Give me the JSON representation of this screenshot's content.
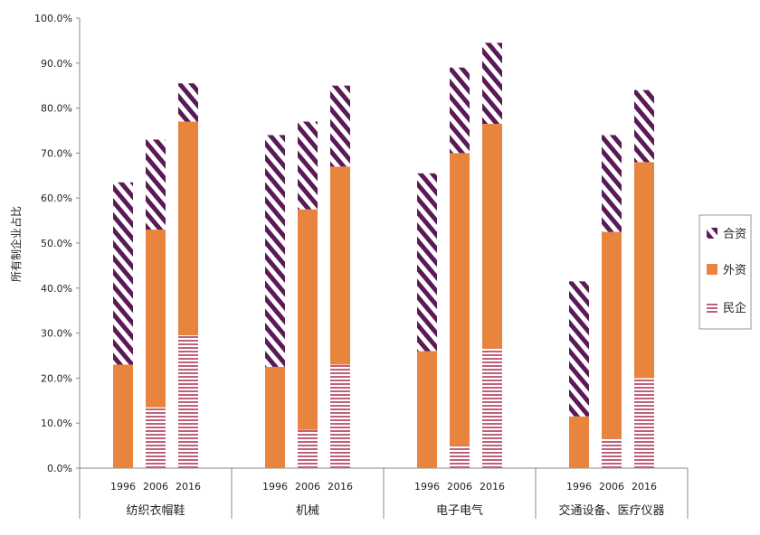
{
  "chart_data": {
    "type": "bar",
    "stacked": true,
    "title": "",
    "ylabel": "所有制企业占比",
    "xlabel": "",
    "ylim": [
      0,
      100
    ],
    "yticks": [
      "0.0%",
      "10.0%",
      "20.0%",
      "30.0%",
      "40.0%",
      "50.0%",
      "60.0%",
      "70.0%",
      "80.0%",
      "90.0%",
      "100.0%"
    ],
    "groups": [
      {
        "name": "纺织衣帽鞋",
        "years": [
          "1996",
          "2006",
          "2016"
        ]
      },
      {
        "name": "机械",
        "years": [
          "1996",
          "2006",
          "2016"
        ]
      },
      {
        "name": "电子电气",
        "years": [
          "1996",
          "2006",
          "2016"
        ]
      },
      {
        "name": "交通设备、医疗仪器",
        "years": [
          "1996",
          "2006",
          "2016"
        ]
      }
    ],
    "series": [
      {
        "name": "民企",
        "pattern": "horizontal-stripes",
        "color": "#c0607a",
        "values": [
          [
            0,
            13.5,
            29.5
          ],
          [
            0,
            8.5,
            23.0
          ],
          [
            0,
            5.0,
            26.5
          ],
          [
            0,
            6.5,
            20.0
          ]
        ]
      },
      {
        "name": "外资",
        "pattern": "solid",
        "color": "#e8843e",
        "values": [
          [
            23.0,
            39.5,
            47.5
          ],
          [
            22.5,
            49.0,
            44.0
          ],
          [
            26.0,
            65.0,
            50.0
          ],
          [
            11.5,
            46.0,
            48.0
          ]
        ]
      },
      {
        "name": "合资",
        "pattern": "diagonal-stripes",
        "color": "#5a1a55",
        "values": [
          [
            40.5,
            20.0,
            8.5
          ],
          [
            51.5,
            19.5,
            18.0
          ],
          [
            39.5,
            19.0,
            18.0
          ],
          [
            30.0,
            21.5,
            16.0
          ]
        ]
      }
    ],
    "legend": {
      "position": "right",
      "order": [
        "合资",
        "外资",
        "民企"
      ]
    }
  }
}
